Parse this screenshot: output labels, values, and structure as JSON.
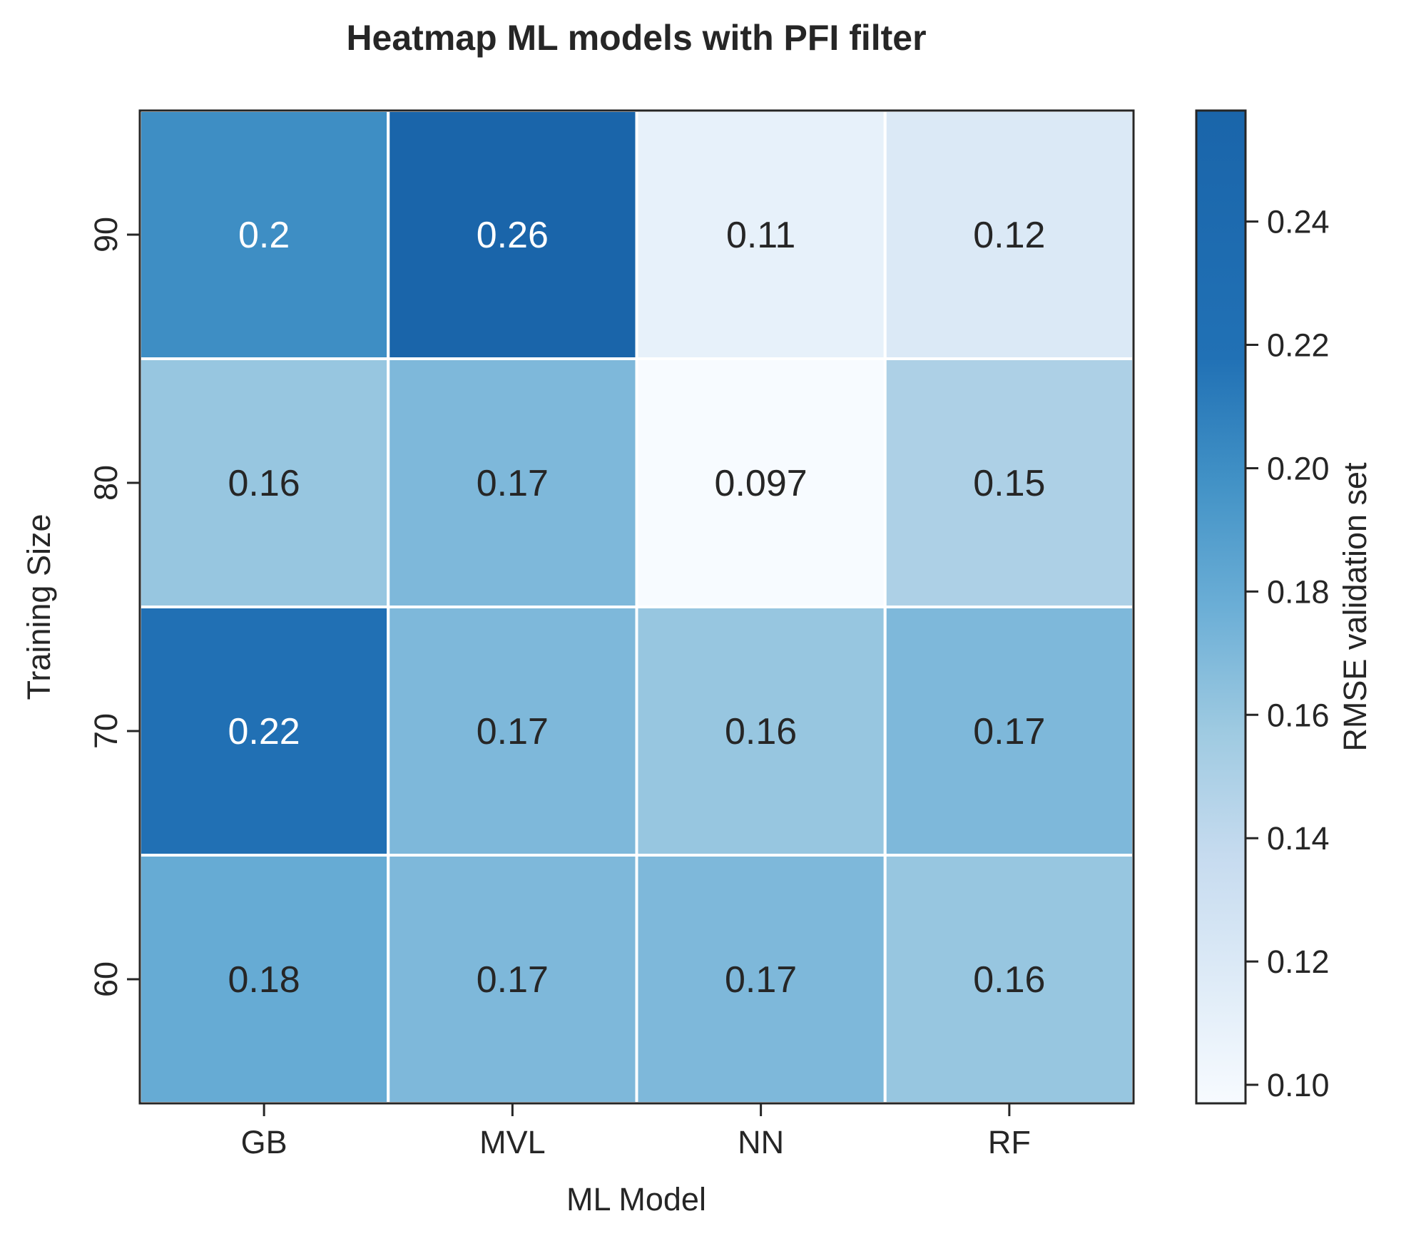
{
  "chart_data": {
    "type": "heatmap",
    "title": "Heatmap ML models with PFI filter",
    "xlabel": "ML Model",
    "ylabel": "Training Size",
    "x_categories": [
      "GB",
      "MVL",
      "NN",
      "RF"
    ],
    "y_categories": [
      "90",
      "80",
      "70",
      "60"
    ],
    "values": [
      [
        0.2,
        0.26,
        0.11,
        0.12
      ],
      [
        0.16,
        0.17,
        0.097,
        0.15
      ],
      [
        0.22,
        0.17,
        0.16,
        0.17
      ],
      [
        0.18,
        0.17,
        0.17,
        0.16
      ]
    ],
    "cell_labels": [
      [
        "0.2",
        "0.26",
        "0.11",
        "0.12"
      ],
      [
        "0.16",
        "0.17",
        "0.097",
        "0.15"
      ],
      [
        "0.22",
        "0.17",
        "0.16",
        "0.17"
      ],
      [
        "0.18",
        "0.17",
        "0.17",
        "0.16"
      ]
    ],
    "colormap": "Blues",
    "colorbar": {
      "label": "RMSE validation set",
      "range": [
        0.097,
        0.258
      ],
      "ticks": [
        0.1,
        0.12,
        0.14,
        0.16,
        0.18,
        0.2,
        0.22,
        0.24
      ],
      "tick_labels": [
        "0.10",
        "0.12",
        "0.14",
        "0.16",
        "0.18",
        "0.20",
        "0.22",
        "0.24"
      ]
    },
    "grid": false,
    "colors": {
      "cmap_low": "#f7fbff",
      "cmap_high": "#1a65aa",
      "text_dark": "#262626",
      "text_light": "#ffffff",
      "frame": "#262626",
      "cell_border": "#ffffff"
    }
  }
}
